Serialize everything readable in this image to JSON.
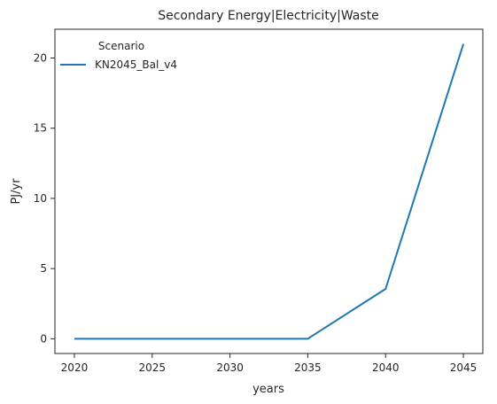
{
  "chart_data": {
    "type": "line",
    "title": "Secondary Energy|Electricity|Waste",
    "xlabel": "years",
    "ylabel": "PJ/yr",
    "x": [
      2020,
      2025,
      2030,
      2035,
      2040,
      2045
    ],
    "xticks": [
      2020,
      2025,
      2030,
      2035,
      2040,
      2045
    ],
    "yticks": [
      0,
      5,
      10,
      15,
      20
    ],
    "xlim": [
      2018.75,
      2046.25
    ],
    "ylim": [
      -1.05,
      22.05
    ],
    "grid": false,
    "legend": {
      "title": "Scenario",
      "placement": "top-left"
    },
    "series": [
      {
        "name": "KN2045_Bal_v4",
        "color": "#1f77b4",
        "values": [
          0,
          0,
          0,
          0,
          3.55,
          21.0
        ]
      }
    ]
  }
}
